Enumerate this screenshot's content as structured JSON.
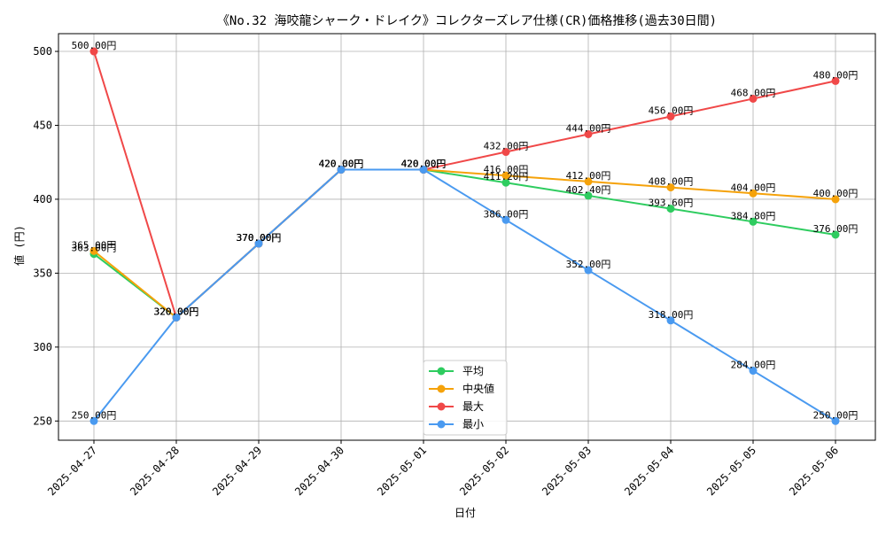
{
  "chart_data": {
    "type": "line",
    "title": "《No.32 海咬龍シャーク・ドレイク》コレクターズレア仕様(CR)価格推移(過去30日間)",
    "xlabel": "日付",
    "ylabel": "値 (円)",
    "categories": [
      "2025-04-27",
      "2025-04-28",
      "2025-04-29",
      "2025-04-30",
      "2025-05-01",
      "2025-05-02",
      "2025-05-03",
      "2025-05-04",
      "2025-05-05",
      "2025-05-06"
    ],
    "ylim": [
      237,
      512
    ],
    "yticks": [
      250,
      300,
      350,
      400,
      450,
      500
    ],
    "grid": true,
    "legend_position": "bottom-center",
    "value_suffix": "円",
    "series": [
      {
        "name": "平均",
        "color": "#2ecc5f",
        "values": [
          363.0,
          320.0,
          370.0,
          420.0,
          420.0,
          411.2,
          402.4,
          393.6,
          384.8,
          376.0
        ],
        "labels": [
          "363.00円",
          "320.00円",
          "370.00円",
          "420.00円",
          "420.00円",
          "411.20円",
          "402.40円",
          "393.60円",
          "384.80円",
          "376.00円"
        ]
      },
      {
        "name": "中央値",
        "color": "#f5a20a",
        "values": [
          365.0,
          320.0,
          370.0,
          420.0,
          420.0,
          416.0,
          412.0,
          408.0,
          404.0,
          400.0
        ],
        "labels": [
          "365.00円",
          "320.00円",
          "370.00円",
          "420.00円",
          "420.00円",
          "416.00円",
          "412.00円",
          "408.00円",
          "404.00円",
          "400.00円"
        ]
      },
      {
        "name": "最大",
        "color": "#f04848",
        "values": [
          500.0,
          320.0,
          370.0,
          420.0,
          420.0,
          432.0,
          444.0,
          456.0,
          468.0,
          480.0
        ],
        "labels": [
          "500.00円",
          "320.00円",
          "370.00円",
          "420.00円",
          "420.00円",
          "432.00円",
          "444.00円",
          "456.00円",
          "468.00円",
          "480.00円"
        ]
      },
      {
        "name": "最小",
        "color": "#4a9af0",
        "values": [
          250.0,
          320.0,
          370.0,
          420.0,
          420.0,
          386.0,
          352.0,
          318.0,
          284.0,
          250.0
        ],
        "labels": [
          "250.00円",
          "320.00円",
          "370.00円",
          "420.00円",
          "420.00円",
          "386.00円",
          "352.00円",
          "318.00円",
          "284.00円",
          "250.00円"
        ]
      }
    ]
  }
}
